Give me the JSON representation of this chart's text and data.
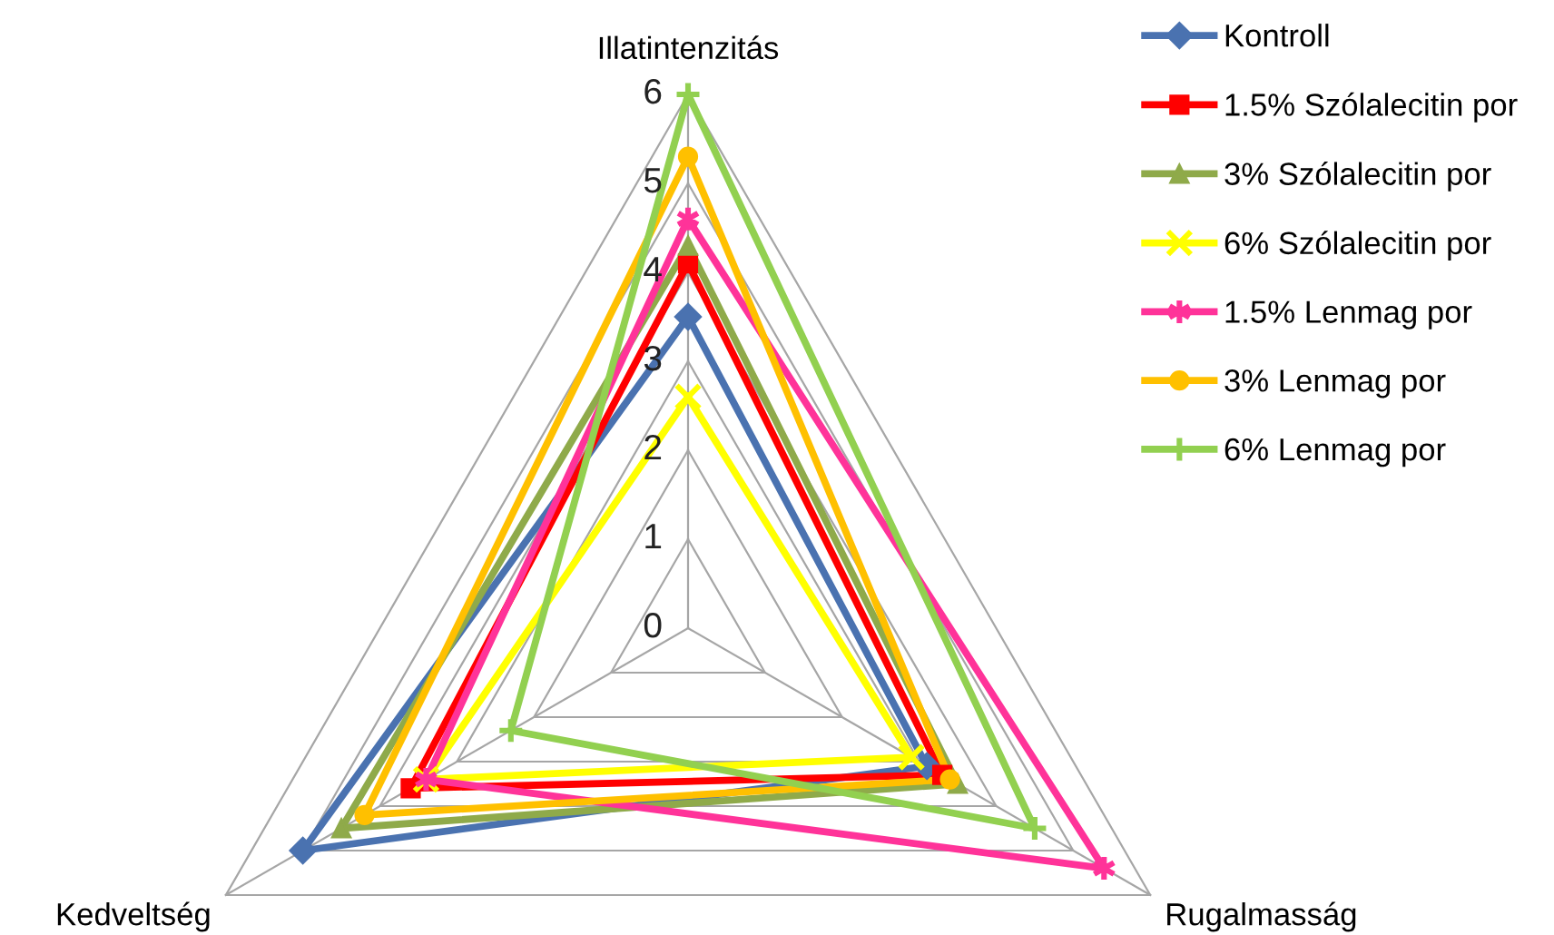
{
  "chart_data": {
    "type": "radar",
    "categories": [
      "Illatintenzitás",
      "Rugalmasság",
      "Kedveltség"
    ],
    "ylim": [
      0,
      6
    ],
    "yticks": [
      0,
      1,
      2,
      3,
      4,
      5,
      6
    ],
    "grid": true,
    "legend": "top right",
    "series": [
      {
        "name": "Kontroll",
        "color": "#4a72b0",
        "marker": "diamond",
        "values": [
          3.5,
          3.1,
          5.0
        ]
      },
      {
        "name": "1.5% Szólalecitin por",
        "color": "#ff0000",
        "marker": "square",
        "values": [
          4.1,
          3.3,
          3.6
        ]
      },
      {
        "name": "3% Szólalecitin por",
        "color": "#8faa4a",
        "marker": "triangle",
        "values": [
          4.3,
          3.5,
          4.5
        ]
      },
      {
        "name": "6% Szólalecitin por",
        "color": "#ffff00",
        "marker": "cross",
        "values": [
          2.6,
          2.9,
          3.4
        ]
      },
      {
        "name": "1.5% Lenmag por",
        "color": "#ff3399",
        "marker": "star",
        "values": [
          4.6,
          5.4,
          3.4
        ]
      },
      {
        "name": "3% Lenmag por",
        "color": "#ffc000",
        "marker": "circle",
        "values": [
          5.3,
          3.4,
          4.2
        ]
      },
      {
        "name": "6% Lenmag por",
        "color": "#92d050",
        "marker": "plus",
        "values": [
          6.0,
          4.5,
          2.3
        ]
      }
    ]
  }
}
